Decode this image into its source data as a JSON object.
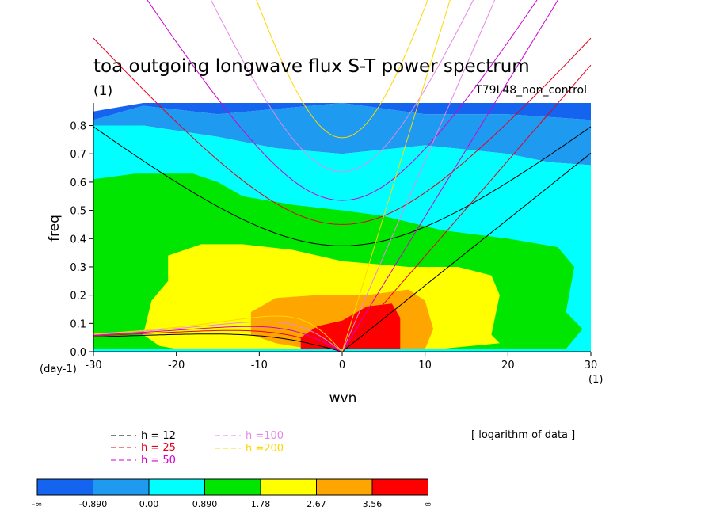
{
  "chart_data": {
    "type": "heatmap",
    "title": "toa outgoing longwave flux S-T power spectrum",
    "subtitle_left": "(1)",
    "subtitle_right": "T79L48_non_control",
    "xlabel": "wvn",
    "ylabel": "freq",
    "xunit_left": "(day-1)",
    "xunit_right": "(1)",
    "xlim": [
      -30,
      30
    ],
    "ylim": [
      0,
      0.88
    ],
    "xticks": [
      "-30",
      "-20",
      "-10",
      "0",
      "10",
      "20",
      "30"
    ],
    "xtick_values": [
      -30,
      -20,
      -10,
      0,
      10,
      20,
      30
    ],
    "yticks": [
      "0.0",
      "0.1",
      "0.2",
      "0.3",
      "0.4",
      "0.5",
      "0.6",
      "0.7",
      "0.8"
    ],
    "ytick_values": [
      0,
      0.1,
      0.2,
      0.3,
      0.4,
      0.5,
      0.6,
      0.7,
      0.8
    ],
    "note": "[ logarithm of data ]",
    "colorbar": {
      "labels": [
        "-∞",
        "-0.890",
        "0.00",
        "0.890",
        "1.78",
        "2.67",
        "3.56",
        "∞"
      ],
      "colors": [
        "#1464f0",
        "#1e9bf0",
        "#00ffff",
        "#00e600",
        "#ffff00",
        "#ffa500",
        "#ff0000"
      ]
    },
    "contour_regions": [
      {
        "level": 1,
        "points": [
          [
            -30,
            0.85
          ],
          [
            -24,
            0.88
          ],
          [
            30,
            0.88
          ],
          [
            30,
            0.82
          ],
          [
            20,
            0.84
          ],
          [
            10,
            0.84
          ],
          [
            0,
            0.88
          ],
          [
            -15,
            0.84
          ],
          [
            -24,
            0.87
          ],
          [
            -30,
            0.82
          ]
        ]
      },
      {
        "level": 2,
        "points": [
          [
            -30,
            0.79
          ],
          [
            -24,
            0.8
          ],
          [
            -15,
            0.76
          ],
          [
            -8,
            0.72
          ],
          [
            0,
            0.7
          ],
          [
            10,
            0.73
          ],
          [
            20,
            0.7
          ],
          [
            25,
            0.67
          ],
          [
            30,
            0.66
          ],
          [
            30,
            0.82
          ],
          [
            20,
            0.84
          ],
          [
            10,
            0.84
          ],
          [
            0,
            0.88
          ],
          [
            -15,
            0.84
          ],
          [
            -24,
            0.87
          ],
          [
            -30,
            0.82
          ]
        ]
      },
      {
        "level": 3,
        "points": [
          [
            -30,
            0.8
          ],
          [
            -24,
            0.8
          ],
          [
            -15,
            0.76
          ],
          [
            -8,
            0.72
          ],
          [
            0,
            0.7
          ],
          [
            10,
            0.73
          ],
          [
            20,
            0.7
          ],
          [
            25,
            0.67
          ],
          [
            30,
            0.66
          ],
          [
            30,
            0
          ],
          [
            -30,
            0
          ]
        ]
      },
      {
        "level": 4,
        "points": [
          [
            -30,
            0.61
          ],
          [
            -25,
            0.63
          ],
          [
            -18,
            0.63
          ],
          [
            -15,
            0.6
          ],
          [
            -12,
            0.55
          ],
          [
            -6,
            0.52
          ],
          [
            0,
            0.5
          ],
          [
            5,
            0.48
          ],
          [
            12,
            0.43
          ],
          [
            20,
            0.4
          ],
          [
            26,
            0.37
          ],
          [
            28,
            0.3
          ],
          [
            27,
            0.14
          ],
          [
            29,
            0.08
          ],
          [
            27,
            0.01
          ],
          [
            -30,
            0.01
          ]
        ]
      },
      {
        "level": 5,
        "points": [
          [
            -22,
            0.02
          ],
          [
            -24,
            0.06
          ],
          [
            -23,
            0.18
          ],
          [
            -21,
            0.25
          ],
          [
            -21,
            0.34
          ],
          [
            -17,
            0.38
          ],
          [
            -12,
            0.38
          ],
          [
            -6,
            0.36
          ],
          [
            0,
            0.32
          ],
          [
            8,
            0.3
          ],
          [
            14,
            0.3
          ],
          [
            18,
            0.27
          ],
          [
            19,
            0.2
          ],
          [
            18,
            0.06
          ],
          [
            19,
            0.03
          ],
          [
            12,
            0.01
          ],
          [
            -20,
            0.01
          ]
        ]
      },
      {
        "level": 6,
        "points": [
          [
            -11,
            0.1
          ],
          [
            -11,
            0.14
          ],
          [
            -8,
            0.19
          ],
          [
            -3,
            0.2
          ],
          [
            3,
            0.2
          ],
          [
            8,
            0.22
          ],
          [
            10,
            0.18
          ],
          [
            11,
            0.08
          ],
          [
            10,
            0.01
          ],
          [
            -4,
            0.01
          ],
          [
            -8,
            0.03
          ],
          [
            -11,
            0.06
          ]
        ]
      },
      {
        "level": 7,
        "points": [
          [
            -5,
            0.01
          ],
          [
            -5,
            0.05
          ],
          [
            -3,
            0.09
          ],
          [
            0,
            0.11
          ],
          [
            3,
            0.16
          ],
          [
            6,
            0.17
          ],
          [
            7,
            0.12
          ],
          [
            7,
            0.05
          ],
          [
            7,
            0.01
          ]
        ]
      }
    ],
    "series": [
      {
        "name": "h = 12",
        "color": "#000000",
        "equivalent_depth_m": 12
      },
      {
        "name": "h = 25",
        "color": "#e6001e",
        "equivalent_depth_m": 25
      },
      {
        "name": "h = 50",
        "color": "#d200d2",
        "equivalent_depth_m": 50
      },
      {
        "name": "h =100",
        "color": "#e687e6",
        "equivalent_depth_m": 100
      },
      {
        "name": "h =200",
        "color": "#ffd700",
        "equivalent_depth_m": 200
      }
    ]
  }
}
